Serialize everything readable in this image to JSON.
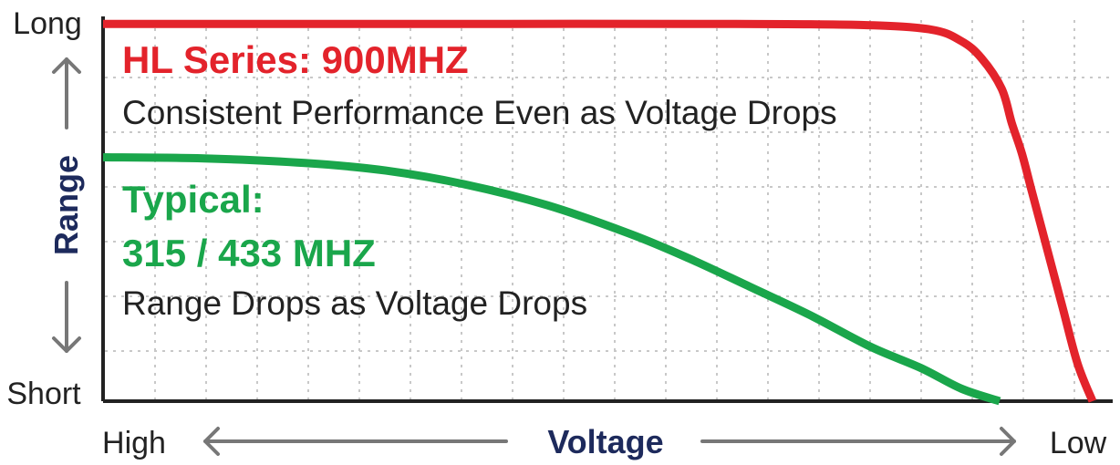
{
  "chart_data": {
    "type": "line",
    "xlabel": "Voltage",
    "ylabel": "Range",
    "x_ticks": [
      "High",
      "Low"
    ],
    "y_ticks": [
      "Short",
      "Long"
    ],
    "xlim": [
      0,
      100
    ],
    "ylim": [
      0,
      100
    ],
    "grid": true,
    "series": [
      {
        "name": "HL Series: 900MHZ",
        "description": "Consistent Performance Even as Voltage Drops",
        "color": "#e3232b",
        "x": [
          0,
          20,
          40,
          60,
          75,
          82,
          85,
          87,
          89,
          90,
          91,
          92,
          93.5,
          95,
          96.5,
          98
        ],
        "y": [
          99,
          99,
          99,
          99,
          98.7,
          97.5,
          94.5,
          90,
          82,
          73,
          65,
          55,
          40,
          25,
          10,
          0
        ]
      },
      {
        "name": "Typical:",
        "name_line2": "315 / 433 MHZ",
        "description": "Range Drops as Voltage Drops",
        "color": "#1aa64b",
        "x": [
          0,
          10,
          20,
          28,
          36,
          44,
          52,
          58,
          64,
          70,
          76,
          81,
          85,
          88.8
        ],
        "y": [
          64,
          63.7,
          62.5,
          60.5,
          56.8,
          51.4,
          44.1,
          37.5,
          30.1,
          22.6,
          14.3,
          8.7,
          3.3,
          0
        ]
      }
    ]
  }
}
